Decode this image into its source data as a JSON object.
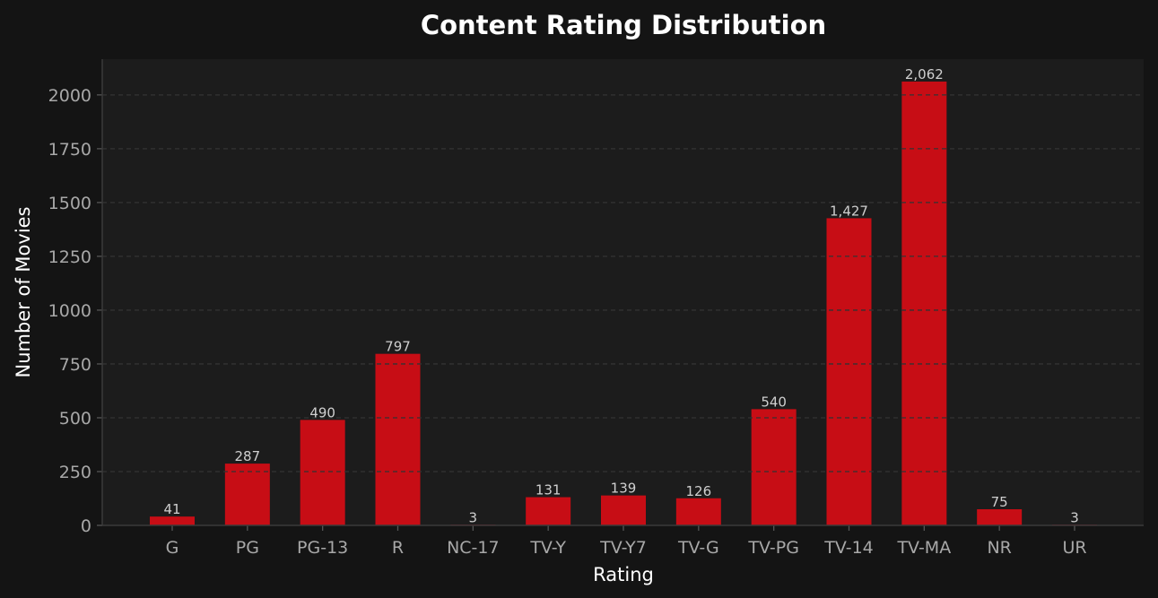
{
  "chart_data": {
    "type": "bar",
    "title": "Content Rating Distribution",
    "xlabel": "Rating",
    "ylabel": "Number of Movies",
    "categories": [
      "G",
      "PG",
      "PG-13",
      "R",
      "NC-17",
      "TV-Y",
      "TV-Y7",
      "TV-G",
      "TV-PG",
      "TV-14",
      "TV-MA",
      "NR",
      "UR"
    ],
    "values": [
      41,
      287,
      490,
      797,
      3,
      131,
      139,
      126,
      540,
      1427,
      2062,
      75,
      3
    ],
    "data_labels": [
      "41",
      "287",
      "490",
      "797",
      "3",
      "131",
      "139",
      "126",
      "540",
      "1,427",
      "2,062",
      "75",
      "3"
    ],
    "ylim": [
      0,
      2166
    ],
    "yticks": [
      0,
      250,
      500,
      750,
      1000,
      1250,
      1500,
      1750,
      2000
    ],
    "grid": "y, dashed",
    "legend": "none",
    "colors": {
      "bar": "#c70d15",
      "background": "#141414",
      "plot_background": "#1c1c1c"
    }
  }
}
